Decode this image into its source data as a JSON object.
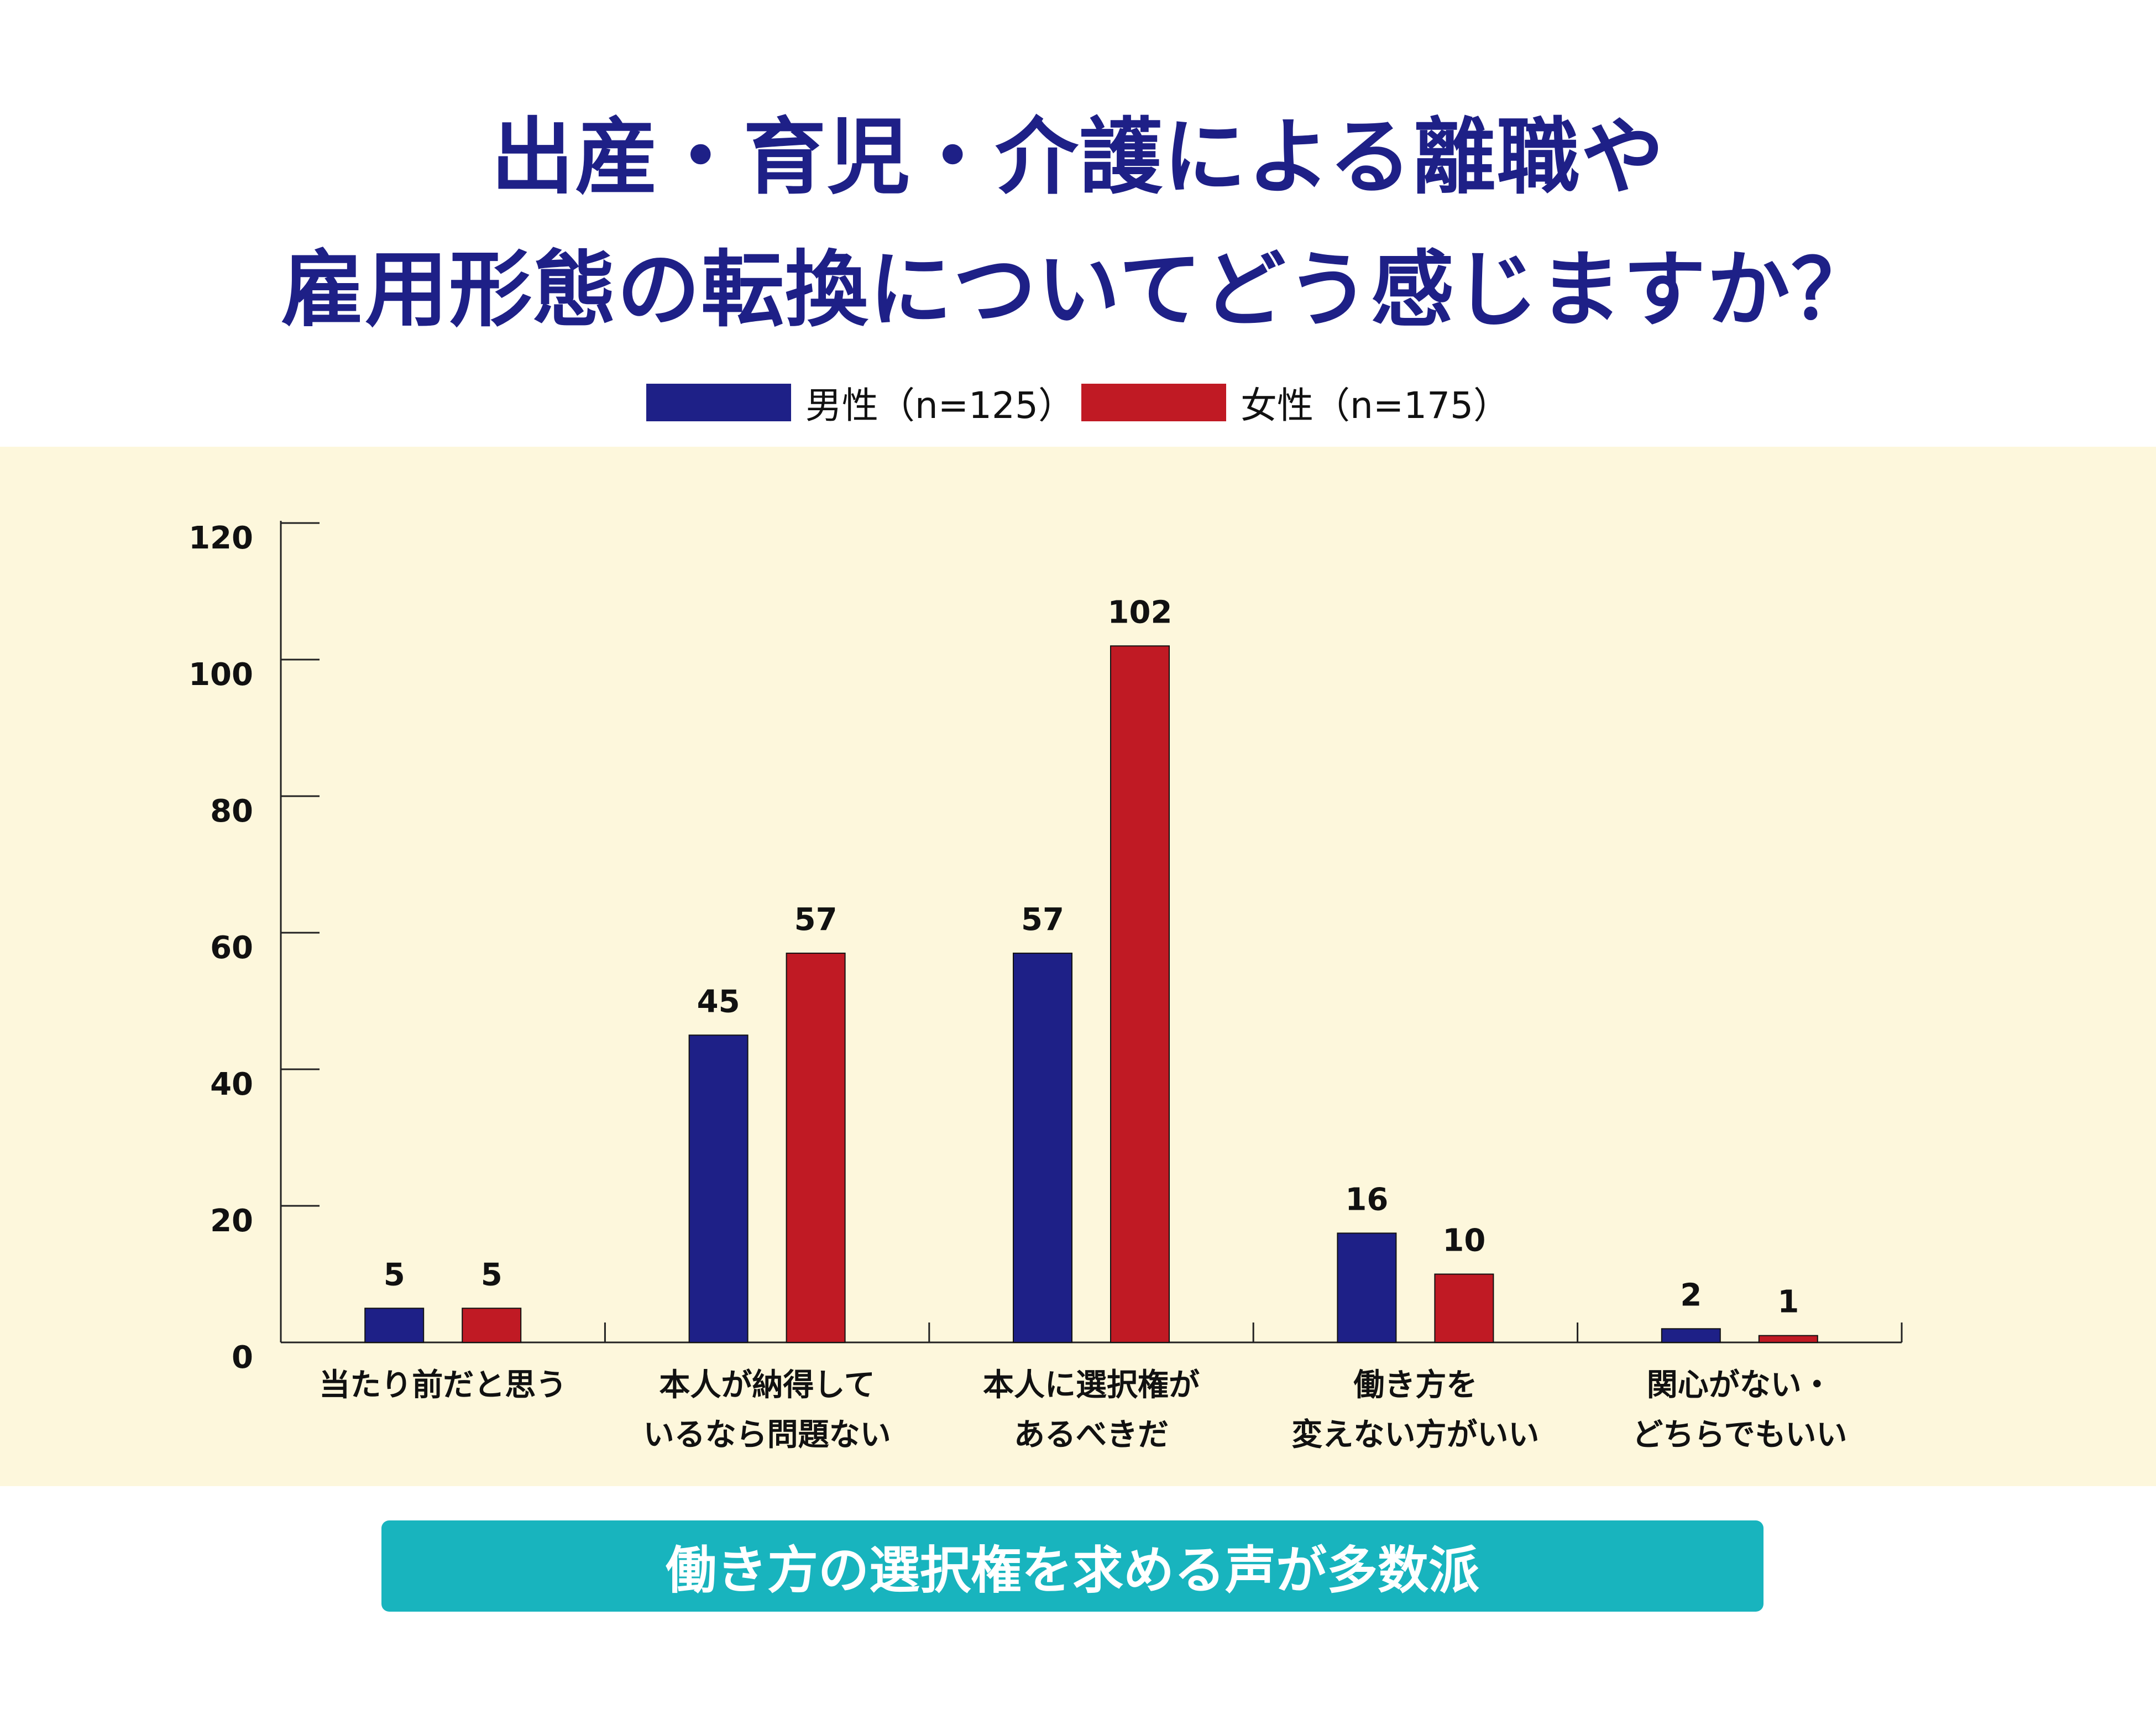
{
  "title_lines": [
    "出産・育児・介護による離職や",
    "雇用形態の転換についてどう感じますか？"
  ],
  "legend": [
    {
      "label": "男性（n=125）",
      "color": "#1e2087"
    },
    {
      "label": "女性（n=175）",
      "color": "#c01a24"
    }
  ],
  "banner": {
    "text": "働き方の選択権を求める声が多数派"
  },
  "chart_data": {
    "type": "bar",
    "title": "出産・育児・介護による離職や雇用形態の転換についてどう感じますか？",
    "categories": [
      [
        "当たり前だと思う"
      ],
      [
        "本人が納得して",
        "いるなら問題ない"
      ],
      [
        "本人に選択権が",
        "あるべきだ"
      ],
      [
        "働き方を",
        "変えない方がいい"
      ],
      [
        "関心がない・",
        "どちらでもいい"
      ]
    ],
    "series": [
      {
        "name": "男性（n=125）",
        "color": "#1e2087",
        "values": [
          5,
          45,
          57,
          16,
          2
        ]
      },
      {
        "name": "女性（n=175）",
        "color": "#c01a24",
        "values": [
          5,
          57,
          102,
          10,
          1
        ]
      }
    ],
    "ylim": [
      0,
      120
    ],
    "yticks": [
      0,
      20,
      40,
      60,
      80,
      100,
      120
    ],
    "xlabel": "",
    "ylabel": "",
    "grid": false,
    "legend_position": "top-center"
  }
}
